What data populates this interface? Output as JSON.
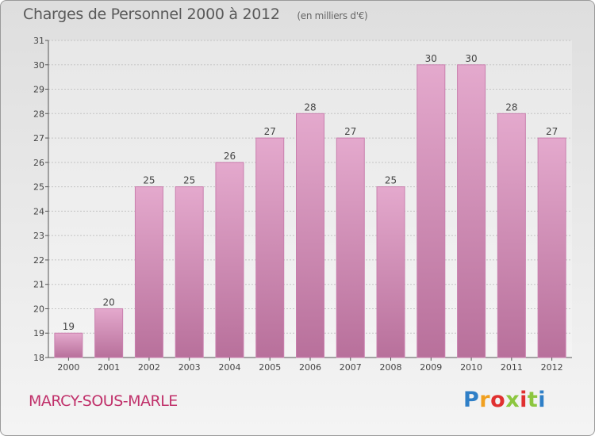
{
  "header": {
    "title": "Charges de Personnel 2000 à 2012",
    "unit": "(en milliers d'€)"
  },
  "footer": {
    "commune": "MARCY-SOUS-MARLE",
    "brand": "Proxiti",
    "brand_colors": [
      "#2f7fc7",
      "#f0a020",
      "#e03030",
      "#8cc63f",
      "#e03030",
      "#8cc63f",
      "#2f7fc7"
    ]
  },
  "colors": {
    "bar_top": "#e4a9cd",
    "bar_bottom": "#b8709b",
    "bar_stroke": "#c97fae",
    "grid": "#c4c4c4",
    "text": "#444444"
  },
  "chart_data": {
    "type": "bar",
    "categories": [
      "2000",
      "2001",
      "2002",
      "2003",
      "2004",
      "2005",
      "2006",
      "2007",
      "2008",
      "2009",
      "2010",
      "2011",
      "2012"
    ],
    "values": [
      19,
      20,
      25,
      25,
      26,
      27,
      28,
      27,
      25,
      30,
      30,
      28,
      27
    ],
    "data_labels": [
      "19",
      "20",
      "25",
      "25",
      "26",
      "27",
      "28",
      "27",
      "25",
      "30",
      "30",
      "28",
      "27"
    ],
    "ylim": [
      18,
      31
    ],
    "yticks": [
      "18",
      "19",
      "20",
      "21",
      "22",
      "23",
      "24",
      "25",
      "26",
      "27",
      "28",
      "29",
      "30",
      "31"
    ],
    "grid": true,
    "xlabel": "",
    "ylabel": ""
  }
}
